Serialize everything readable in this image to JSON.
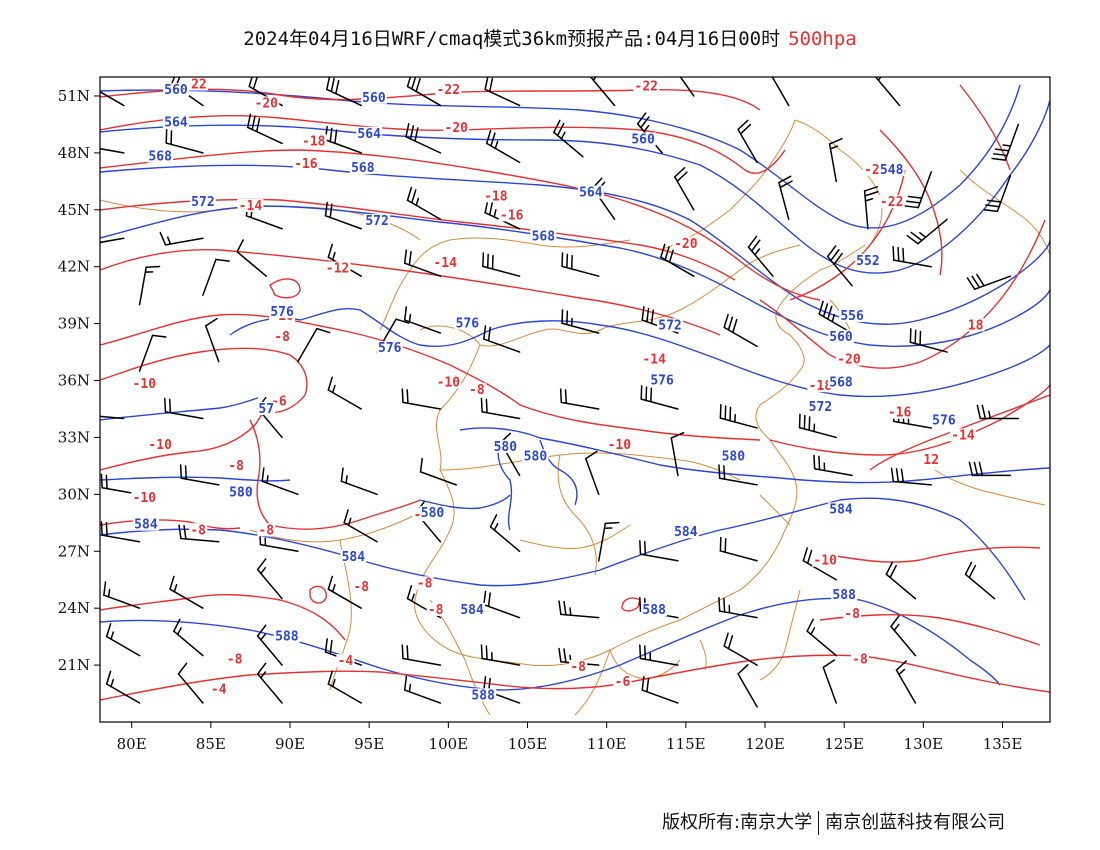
{
  "title": {
    "main": "2024年04月16日WRF/cmaq模式36km预报产品:04月16日00时",
    "level": "500hpa"
  },
  "colors": {
    "temperature_contour": "#e83030",
    "height_contour": "#2a45d8",
    "coastline_border": "#d98a3a",
    "wind_barb": "#000000",
    "level_text": "#e83030"
  },
  "axes": {
    "lon_labels": [
      "80E",
      "85E",
      "90E",
      "95E",
      "100E",
      "105E",
      "110E",
      "115E",
      "120E",
      "125E",
      "130E",
      "135E"
    ],
    "lon_values": [
      80,
      85,
      90,
      95,
      100,
      105,
      110,
      115,
      120,
      125,
      130,
      135
    ],
    "lat_labels": [
      "51N",
      "48N",
      "45N",
      "42N",
      "39N",
      "36N",
      "33N",
      "30N",
      "27N",
      "24N",
      "21N"
    ],
    "lat_values": [
      51,
      48,
      45,
      42,
      39,
      36,
      33,
      30,
      27,
      24,
      21
    ],
    "lon_range": [
      78,
      138
    ],
    "lat_range": [
      18,
      52
    ]
  },
  "temperature_labels": [
    {
      "text": "-22",
      "lon": 84.0,
      "lat": 51.5
    },
    {
      "text": "-20",
      "lon": 88.5,
      "lat": 50.5
    },
    {
      "text": "-22",
      "lon": 100.0,
      "lat": 51.2
    },
    {
      "text": "-22",
      "lon": 112.5,
      "lat": 51.4
    },
    {
      "text": "-18",
      "lon": 91.5,
      "lat": 48.5
    },
    {
      "text": "-16",
      "lon": 91.0,
      "lat": 47.3
    },
    {
      "text": "-20",
      "lon": 100.5,
      "lat": 49.2
    },
    {
      "text": "-18",
      "lon": 103.0,
      "lat": 45.6
    },
    {
      "text": "-16",
      "lon": 104.0,
      "lat": 44.6
    },
    {
      "text": "-14",
      "lon": 87.5,
      "lat": 45.1
    },
    {
      "text": "-20",
      "lon": 115.0,
      "lat": 43.1
    },
    {
      "text": "-22",
      "lon": 127.0,
      "lat": 47.0
    },
    {
      "text": "-22",
      "lon": 128.0,
      "lat": 45.3
    },
    {
      "text": "-12",
      "lon": 93.0,
      "lat": 41.8
    },
    {
      "text": "-14",
      "lon": 99.8,
      "lat": 42.1
    },
    {
      "text": "-10",
      "lon": 89.5,
      "lat": 39.3
    },
    {
      "text": "-8",
      "lon": 89.5,
      "lat": 38.2
    },
    {
      "text": "-14",
      "lon": 113.0,
      "lat": 37.0
    },
    {
      "text": "-20",
      "lon": 125.3,
      "lat": 37.0
    },
    {
      "text": "-18",
      "lon": 123.5,
      "lat": 35.6
    },
    {
      "text": "-16",
      "lon": 128.5,
      "lat": 34.2
    },
    {
      "text": "18",
      "lon": 133.3,
      "lat": 38.8
    },
    {
      "text": "-10",
      "lon": 80.8,
      "lat": 35.7
    },
    {
      "text": "-10",
      "lon": 100.0,
      "lat": 35.8
    },
    {
      "text": "-8",
      "lon": 101.8,
      "lat": 35.4
    },
    {
      "text": "-6",
      "lon": 89.3,
      "lat": 34.8
    },
    {
      "text": "-10",
      "lon": 81.8,
      "lat": 32.5
    },
    {
      "text": "-8",
      "lon": 86.6,
      "lat": 31.4
    },
    {
      "text": "-10",
      "lon": 110.8,
      "lat": 32.5
    },
    {
      "text": "-14",
      "lon": 132.5,
      "lat": 33.0
    },
    {
      "text": "12",
      "lon": 130.5,
      "lat": 31.7
    },
    {
      "text": "-10",
      "lon": 80.8,
      "lat": 29.7
    },
    {
      "text": "-8",
      "lon": 84.2,
      "lat": 28.0
    },
    {
      "text": "-8",
      "lon": 88.5,
      "lat": 28.0
    },
    {
      "text": "-8",
      "lon": 98.3,
      "lat": 28.8
    },
    {
      "text": "-10",
      "lon": 123.8,
      "lat": 26.4
    },
    {
      "text": "-8",
      "lon": 94.5,
      "lat": 25.0
    },
    {
      "text": "-8",
      "lon": 98.5,
      "lat": 25.2
    },
    {
      "text": "-8",
      "lon": 99.2,
      "lat": 23.8
    },
    {
      "text": "-8",
      "lon": 125.5,
      "lat": 23.6
    },
    {
      "text": "-8",
      "lon": 86.5,
      "lat": 21.2
    },
    {
      "text": "-4",
      "lon": 93.5,
      "lat": 21.1
    },
    {
      "text": "-4",
      "lon": 85.5,
      "lat": 19.6
    },
    {
      "text": "-8",
      "lon": 108.2,
      "lat": 20.8
    },
    {
      "text": "-8",
      "lon": 126.0,
      "lat": 21.2
    },
    {
      "text": "-6",
      "lon": 111.0,
      "lat": 20.0
    }
  ],
  "height_labels": [
    {
      "text": "560",
      "lon": 82.8,
      "lat": 51.2
    },
    {
      "text": "560",
      "lon": 95.3,
      "lat": 50.8
    },
    {
      "text": "564",
      "lon": 82.8,
      "lat": 49.5
    },
    {
      "text": "568",
      "lon": 81.8,
      "lat": 47.7
    },
    {
      "text": "564",
      "lon": 95.0,
      "lat": 48.9
    },
    {
      "text": "568",
      "lon": 94.6,
      "lat": 47.1
    },
    {
      "text": "560",
      "lon": 112.3,
      "lat": 48.6
    },
    {
      "text": "572",
      "lon": 84.5,
      "lat": 45.3
    },
    {
      "text": "572",
      "lon": 95.5,
      "lat": 44.3
    },
    {
      "text": "564",
      "lon": 109.0,
      "lat": 45.8
    },
    {
      "text": "568",
      "lon": 106.0,
      "lat": 43.5
    },
    {
      "text": "548",
      "lon": 128.0,
      "lat": 47.0
    },
    {
      "text": "552",
      "lon": 126.5,
      "lat": 42.2
    },
    {
      "text": "576",
      "lon": 89.5,
      "lat": 39.5
    },
    {
      "text": "576",
      "lon": 101.2,
      "lat": 38.9
    },
    {
      "text": "576",
      "lon": 96.3,
      "lat": 37.6
    },
    {
      "text": "572",
      "lon": 114.0,
      "lat": 38.8
    },
    {
      "text": "556",
      "lon": 125.5,
      "lat": 39.3
    },
    {
      "text": "560",
      "lon": 124.8,
      "lat": 38.2
    },
    {
      "text": "576",
      "lon": 113.5,
      "lat": 35.9
    },
    {
      "text": "568",
      "lon": 124.8,
      "lat": 35.8
    },
    {
      "text": "572",
      "lon": 123.5,
      "lat": 34.5
    },
    {
      "text": "576",
      "lon": 131.3,
      "lat": 33.8
    },
    {
      "text": "57",
      "lon": 88.5,
      "lat": 34.4
    },
    {
      "text": "580",
      "lon": 103.6,
      "lat": 32.4
    },
    {
      "text": "580",
      "lon": 105.5,
      "lat": 31.9
    },
    {
      "text": "580",
      "lon": 118.0,
      "lat": 31.9
    },
    {
      "text": "580",
      "lon": 86.9,
      "lat": 30.0
    },
    {
      "text": "584",
      "lon": 124.8,
      "lat": 29.1
    },
    {
      "text": "580",
      "lon": 99.0,
      "lat": 28.9
    },
    {
      "text": "584",
      "lon": 80.9,
      "lat": 28.3
    },
    {
      "text": "584",
      "lon": 115.0,
      "lat": 27.9
    },
    {
      "text": "584",
      "lon": 94.0,
      "lat": 26.6
    },
    {
      "text": "588",
      "lon": 125.0,
      "lat": 24.6
    },
    {
      "text": "584",
      "lon": 101.5,
      "lat": 23.8
    },
    {
      "text": "588",
      "lon": 113.0,
      "lat": 23.8
    },
    {
      "text": "588",
      "lon": 89.8,
      "lat": 22.4
    },
    {
      "text": "588",
      "lon": 102.2,
      "lat": 19.3
    }
  ],
  "wind_barbs": [
    {
      "lon": 79.5,
      "lat": 50.5,
      "dir": 300,
      "speed": 20
    },
    {
      "lon": 84.5,
      "lat": 50.5,
      "dir": 305,
      "speed": 25
    },
    {
      "lon": 89.5,
      "lat": 50.5,
      "dir": 300,
      "speed": 20
    },
    {
      "lon": 94.5,
      "lat": 50.5,
      "dir": 295,
      "speed": 30
    },
    {
      "lon": 99.5,
      "lat": 50.5,
      "dir": 300,
      "speed": 30
    },
    {
      "lon": 104.5,
      "lat": 50.5,
      "dir": 295,
      "speed": 20
    },
    {
      "lon": 110.5,
      "lat": 50.5,
      "dir": 320,
      "speed": 20
    },
    {
      "lon": 115.5,
      "lat": 51.0,
      "dir": 325,
      "speed": 25
    },
    {
      "lon": 121.5,
      "lat": 50.5,
      "dir": 330,
      "speed": 20
    },
    {
      "lon": 128.5,
      "lat": 50.5,
      "dir": 320,
      "speed": 20
    },
    {
      "lon": 136.0,
      "lat": 49.5,
      "dir": 200,
      "speed": 35
    },
    {
      "lon": 79.5,
      "lat": 48.0,
      "dir": 280,
      "speed": 20
    },
    {
      "lon": 84.5,
      "lat": 48.0,
      "dir": 285,
      "speed": 20
    },
    {
      "lon": 89.5,
      "lat": 48.5,
      "dir": 295,
      "speed": 30
    },
    {
      "lon": 94.5,
      "lat": 48.0,
      "dir": 290,
      "speed": 30
    },
    {
      "lon": 99.5,
      "lat": 48.0,
      "dir": 295,
      "speed": 30
    },
    {
      "lon": 104.5,
      "lat": 47.5,
      "dir": 300,
      "speed": 25
    },
    {
      "lon": 108.5,
      "lat": 47.8,
      "dir": 310,
      "speed": 25
    },
    {
      "lon": 113.5,
      "lat": 48.0,
      "dir": 320,
      "speed": 25
    },
    {
      "lon": 119.5,
      "lat": 47.5,
      "dir": 330,
      "speed": 20
    },
    {
      "lon": 124.5,
      "lat": 46.5,
      "dir": 350,
      "speed": 15
    },
    {
      "lon": 130.5,
      "lat": 47.0,
      "dir": 200,
      "speed": 30
    },
    {
      "lon": 135.5,
      "lat": 46.8,
      "dir": 200,
      "speed": 30
    },
    {
      "lon": 79.5,
      "lat": 43.5,
      "dir": 260,
      "speed": 15
    },
    {
      "lon": 84.5,
      "lat": 43.5,
      "dir": 260,
      "speed": 15
    },
    {
      "lon": 89.5,
      "lat": 44.0,
      "dir": 290,
      "speed": 20
    },
    {
      "lon": 94.5,
      "lat": 44.0,
      "dir": 290,
      "speed": 20
    },
    {
      "lon": 99.5,
      "lat": 44.5,
      "dir": 300,
      "speed": 25
    },
    {
      "lon": 104.5,
      "lat": 44.0,
      "dir": 295,
      "speed": 25
    },
    {
      "lon": 110.5,
      "lat": 44.5,
      "dir": 325,
      "speed": 25
    },
    {
      "lon": 115.5,
      "lat": 45.0,
      "dir": 330,
      "speed": 20
    },
    {
      "lon": 121.5,
      "lat": 44.5,
      "dir": 345,
      "speed": 20
    },
    {
      "lon": 126.5,
      "lat": 44.0,
      "dir": 355,
      "speed": 25
    },
    {
      "lon": 131.5,
      "lat": 44.5,
      "dir": 230,
      "speed": 25
    },
    {
      "lon": 80.5,
      "lat": 40.0,
      "dir": 10,
      "speed": 15
    },
    {
      "lon": 84.5,
      "lat": 40.5,
      "dir": 20,
      "speed": 10
    },
    {
      "lon": 88.5,
      "lat": 41.5,
      "dir": 310,
      "speed": 10
    },
    {
      "lon": 94.5,
      "lat": 41.5,
      "dir": 300,
      "speed": 15
    },
    {
      "lon": 99.5,
      "lat": 41.5,
      "dir": 290,
      "speed": 20
    },
    {
      "lon": 104.5,
      "lat": 41.5,
      "dir": 285,
      "speed": 30
    },
    {
      "lon": 109.5,
      "lat": 41.5,
      "dir": 285,
      "speed": 30
    },
    {
      "lon": 115.5,
      "lat": 41.5,
      "dir": 300,
      "speed": 30
    },
    {
      "lon": 120.5,
      "lat": 41.5,
      "dir": 320,
      "speed": 25
    },
    {
      "lon": 125.5,
      "lat": 41.0,
      "dir": 320,
      "speed": 30
    },
    {
      "lon": 130.5,
      "lat": 42.0,
      "dir": 280,
      "speed": 30
    },
    {
      "lon": 135.5,
      "lat": 41.5,
      "dir": 250,
      "speed": 30
    },
    {
      "lon": 80.5,
      "lat": 36.5,
      "dir": 20,
      "speed": 10
    },
    {
      "lon": 85.5,
      "lat": 37.0,
      "dir": 340,
      "speed": 10
    },
    {
      "lon": 90.5,
      "lat": 37.0,
      "dir": 30,
      "speed": 10
    },
    {
      "lon": 95.5,
      "lat": 37.5,
      "dir": 30,
      "speed": 10
    },
    {
      "lon": 99.5,
      "lat": 38.5,
      "dir": 290,
      "speed": 15
    },
    {
      "lon": 104.5,
      "lat": 37.5,
      "dir": 290,
      "speed": 20
    },
    {
      "lon": 109.5,
      "lat": 38.5,
      "dir": 285,
      "speed": 25
    },
    {
      "lon": 114.5,
      "lat": 38.5,
      "dir": 290,
      "speed": 30
    },
    {
      "lon": 119.5,
      "lat": 37.8,
      "dir": 300,
      "speed": 30
    },
    {
      "lon": 125.5,
      "lat": 38.5,
      "dir": 300,
      "speed": 35
    },
    {
      "lon": 131.5,
      "lat": 37.5,
      "dir": 285,
      "speed": 30
    },
    {
      "lon": 79.5,
      "lat": 34.0,
      "dir": 275,
      "speed": 20
    },
    {
      "lon": 84.5,
      "lat": 34.0,
      "dir": 280,
      "speed": 20
    },
    {
      "lon": 89.5,
      "lat": 33.0,
      "dir": 320,
      "speed": 15
    },
    {
      "lon": 94.5,
      "lat": 34.5,
      "dir": 300,
      "speed": 15
    },
    {
      "lon": 99.5,
      "lat": 34.5,
      "dir": 280,
      "speed": 20
    },
    {
      "lon": 104.5,
      "lat": 34.0,
      "dir": 280,
      "speed": 20
    },
    {
      "lon": 109.5,
      "lat": 34.5,
      "dir": 280,
      "speed": 20
    },
    {
      "lon": 114.5,
      "lat": 34.5,
      "dir": 285,
      "speed": 30
    },
    {
      "lon": 119.5,
      "lat": 33.5,
      "dir": 285,
      "speed": 35
    },
    {
      "lon": 124.5,
      "lat": 33.0,
      "dir": 285,
      "speed": 35
    },
    {
      "lon": 130.5,
      "lat": 33.5,
      "dir": 280,
      "speed": 35
    },
    {
      "lon": 136.0,
      "lat": 34.0,
      "dir": 270,
      "speed": 25
    },
    {
      "lon": 80.5,
      "lat": 30.0,
      "dir": 280,
      "speed": 20
    },
    {
      "lon": 85.5,
      "lat": 30.5,
      "dir": 280,
      "speed": 20
    },
    {
      "lon": 90.5,
      "lat": 30.0,
      "dir": 290,
      "speed": 15
    },
    {
      "lon": 95.5,
      "lat": 30.0,
      "dir": 290,
      "speed": 15
    },
    {
      "lon": 100.5,
      "lat": 30.5,
      "dir": 290,
      "speed": 10
    },
    {
      "lon": 104.5,
      "lat": 31.0,
      "dir": 330,
      "speed": 10
    },
    {
      "lon": 109.5,
      "lat": 30.0,
      "dir": 340,
      "speed": 10
    },
    {
      "lon": 114.5,
      "lat": 31.0,
      "dir": 350,
      "speed": 10
    },
    {
      "lon": 119.5,
      "lat": 30.5,
      "dir": 280,
      "speed": 20
    },
    {
      "lon": 125.5,
      "lat": 31.0,
      "dir": 280,
      "speed": 25
    },
    {
      "lon": 130.5,
      "lat": 30.5,
      "dir": 275,
      "speed": 30
    },
    {
      "lon": 135.5,
      "lat": 31.0,
      "dir": 270,
      "speed": 30
    },
    {
      "lon": 80.5,
      "lat": 27.5,
      "dir": 280,
      "speed": 20
    },
    {
      "lon": 85.5,
      "lat": 27.5,
      "dir": 275,
      "speed": 20
    },
    {
      "lon": 90.5,
      "lat": 27.0,
      "dir": 280,
      "speed": 15
    },
    {
      "lon": 95.5,
      "lat": 27.5,
      "dir": 300,
      "speed": 15
    },
    {
      "lon": 99.5,
      "lat": 27.5,
      "dir": 320,
      "speed": 15
    },
    {
      "lon": 104.5,
      "lat": 27.0,
      "dir": 310,
      "speed": 15
    },
    {
      "lon": 109.5,
      "lat": 26.5,
      "dir": 10,
      "speed": 15
    },
    {
      "lon": 114.5,
      "lat": 26.5,
      "dir": 280,
      "speed": 20
    },
    {
      "lon": 119.5,
      "lat": 26.5,
      "dir": 285,
      "speed": 20
    },
    {
      "lon": 124.5,
      "lat": 25.5,
      "dir": 300,
      "speed": 20
    },
    {
      "lon": 129.5,
      "lat": 24.5,
      "dir": 310,
      "speed": 20
    },
    {
      "lon": 134.5,
      "lat": 24.5,
      "dir": 310,
      "speed": 20
    },
    {
      "lon": 80.5,
      "lat": 24.0,
      "dir": 290,
      "speed": 15
    },
    {
      "lon": 84.5,
      "lat": 24.0,
      "dir": 300,
      "speed": 15
    },
    {
      "lon": 89.5,
      "lat": 24.5,
      "dir": 320,
      "speed": 15
    },
    {
      "lon": 94.5,
      "lat": 24.0,
      "dir": 300,
      "speed": 15
    },
    {
      "lon": 99.5,
      "lat": 23.5,
      "dir": 300,
      "speed": 15
    },
    {
      "lon": 104.5,
      "lat": 23.5,
      "dir": 290,
      "speed": 20
    },
    {
      "lon": 109.5,
      "lat": 23.5,
      "dir": 275,
      "speed": 25
    },
    {
      "lon": 114.5,
      "lat": 23.5,
      "dir": 280,
      "speed": 25
    },
    {
      "lon": 119.5,
      "lat": 23.5,
      "dir": 280,
      "speed": 25
    },
    {
      "lon": 80.5,
      "lat": 21.5,
      "dir": 300,
      "speed": 15
    },
    {
      "lon": 84.5,
      "lat": 21.5,
      "dir": 310,
      "speed": 15
    },
    {
      "lon": 89.5,
      "lat": 21.0,
      "dir": 320,
      "speed": 15
    },
    {
      "lon": 94.5,
      "lat": 21.0,
      "dir": 290,
      "speed": 20
    },
    {
      "lon": 99.5,
      "lat": 21.0,
      "dir": 280,
      "speed": 20
    },
    {
      "lon": 104.5,
      "lat": 21.0,
      "dir": 280,
      "speed": 25
    },
    {
      "lon": 109.5,
      "lat": 21.0,
      "dir": 275,
      "speed": 25
    },
    {
      "lon": 114.5,
      "lat": 21.0,
      "dir": 280,
      "speed": 25
    },
    {
      "lon": 119.5,
      "lat": 21.0,
      "dir": 300,
      "speed": 20
    },
    {
      "lon": 124.5,
      "lat": 21.5,
      "dir": 310,
      "speed": 15
    },
    {
      "lon": 129.5,
      "lat": 21.5,
      "dir": 320,
      "speed": 15
    },
    {
      "lon": 80.5,
      "lat": 19.0,
      "dir": 300,
      "speed": 15
    },
    {
      "lon": 84.5,
      "lat": 19.0,
      "dir": 320,
      "speed": 10
    },
    {
      "lon": 89.5,
      "lat": 19.0,
      "dir": 320,
      "speed": 15
    },
    {
      "lon": 94.5,
      "lat": 19.0,
      "dir": 300,
      "speed": 15
    },
    {
      "lon": 99.5,
      "lat": 19.0,
      "dir": 290,
      "speed": 15
    },
    {
      "lon": 104.5,
      "lat": 19.0,
      "dir": 290,
      "speed": 20
    },
    {
      "lon": 114.5,
      "lat": 19.0,
      "dir": 290,
      "speed": 20
    },
    {
      "lon": 119.5,
      "lat": 18.8,
      "dir": 330,
      "speed": 10
    },
    {
      "lon": 124.5,
      "lat": 19.0,
      "dir": 340,
      "speed": 10
    },
    {
      "lon": 129.5,
      "lat": 19.0,
      "dir": 330,
      "speed": 15
    }
  ],
  "copyright": {
    "left": "版权所有:南京大学",
    "right": "南京创蓝科技有限公司"
  }
}
